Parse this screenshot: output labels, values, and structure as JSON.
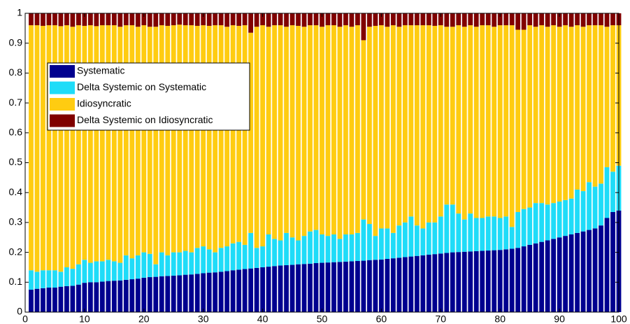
{
  "chart_data": {
    "type": "stacked_bar",
    "x": [
      1,
      2,
      3,
      4,
      5,
      6,
      7,
      8,
      9,
      10,
      11,
      12,
      13,
      14,
      15,
      16,
      17,
      18,
      19,
      20,
      21,
      22,
      23,
      24,
      25,
      26,
      27,
      28,
      29,
      30,
      31,
      32,
      33,
      34,
      35,
      36,
      37,
      38,
      39,
      40,
      41,
      42,
      43,
      44,
      45,
      46,
      47,
      48,
      49,
      50,
      51,
      52,
      53,
      54,
      55,
      56,
      57,
      58,
      59,
      60,
      61,
      62,
      63,
      64,
      65,
      66,
      67,
      68,
      69,
      70,
      71,
      72,
      73,
      74,
      75,
      76,
      77,
      78,
      79,
      80,
      81,
      82,
      83,
      84,
      85,
      86,
      87,
      88,
      89,
      90,
      91,
      92,
      93,
      94,
      95,
      96,
      97,
      98,
      99,
      100
    ],
    "series": [
      {
        "name": "Systematic",
        "color": "#00008f",
        "values": [
          0.075,
          0.078,
          0.08,
          0.082,
          0.082,
          0.085,
          0.087,
          0.088,
          0.092,
          0.098,
          0.1,
          0.1,
          0.102,
          0.104,
          0.105,
          0.106,
          0.108,
          0.11,
          0.112,
          0.115,
          0.117,
          0.118,
          0.12,
          0.121,
          0.122,
          0.123,
          0.125,
          0.126,
          0.128,
          0.13,
          0.132,
          0.133,
          0.135,
          0.137,
          0.14,
          0.142,
          0.144,
          0.146,
          0.148,
          0.15,
          0.152,
          0.154,
          0.156,
          0.157,
          0.158,
          0.16,
          0.161,
          0.162,
          0.164,
          0.165,
          0.166,
          0.167,
          0.168,
          0.169,
          0.17,
          0.171,
          0.172,
          0.174,
          0.175,
          0.176,
          0.178,
          0.18,
          0.182,
          0.184,
          0.186,
          0.188,
          0.19,
          0.192,
          0.194,
          0.196,
          0.198,
          0.2,
          0.201,
          0.202,
          0.203,
          0.204,
          0.205,
          0.206,
          0.207,
          0.208,
          0.21,
          0.212,
          0.215,
          0.22,
          0.225,
          0.23,
          0.235,
          0.24,
          0.245,
          0.25,
          0.255,
          0.26,
          0.265,
          0.27,
          0.275,
          0.28,
          0.29,
          0.315,
          0.335,
          0.34
        ]
      },
      {
        "name": "Delta Systemic on Systematic",
        "color": "#1fdcf8",
        "values": [
          0.065,
          0.057,
          0.06,
          0.058,
          0.058,
          0.05,
          0.063,
          0.057,
          0.068,
          0.077,
          0.065,
          0.07,
          0.068,
          0.071,
          0.065,
          0.059,
          0.082,
          0.07,
          0.078,
          0.085,
          0.078,
          0.042,
          0.08,
          0.069,
          0.078,
          0.077,
          0.08,
          0.074,
          0.087,
          0.09,
          0.078,
          0.067,
          0.08,
          0.083,
          0.09,
          0.093,
          0.081,
          0.119,
          0.067,
          0.07,
          0.108,
          0.091,
          0.084,
          0.108,
          0.092,
          0.08,
          0.094,
          0.108,
          0.111,
          0.095,
          0.089,
          0.093,
          0.077,
          0.091,
          0.09,
          0.094,
          0.138,
          0.121,
          0.08,
          0.104,
          0.102,
          0.085,
          0.108,
          0.116,
          0.134,
          0.102,
          0.09,
          0.108,
          0.106,
          0.124,
          0.162,
          0.16,
          0.129,
          0.108,
          0.127,
          0.111,
          0.11,
          0.114,
          0.113,
          0.107,
          0.11,
          0.073,
          0.12,
          0.125,
          0.125,
          0.135,
          0.13,
          0.12,
          0.12,
          0.12,
          0.12,
          0.12,
          0.145,
          0.135,
          0.16,
          0.14,
          0.14,
          0.17,
          0.135,
          0.15
        ]
      },
      {
        "name": "Idiosyncratic",
        "color": "#ffcc11",
        "values": [
          0.82,
          0.825,
          0.818,
          0.82,
          0.82,
          0.822,
          0.81,
          0.81,
          0.8,
          0.783,
          0.795,
          0.787,
          0.79,
          0.785,
          0.79,
          0.79,
          0.77,
          0.78,
          0.765,
          0.76,
          0.76,
          0.795,
          0.76,
          0.768,
          0.76,
          0.762,
          0.755,
          0.76,
          0.743,
          0.74,
          0.748,
          0.76,
          0.745,
          0.735,
          0.73,
          0.723,
          0.735,
          0.67,
          0.74,
          0.74,
          0.695,
          0.715,
          0.72,
          0.69,
          0.71,
          0.718,
          0.7,
          0.69,
          0.685,
          0.695,
          0.705,
          0.7,
          0.71,
          0.7,
          0.695,
          0.695,
          0.6,
          0.66,
          0.703,
          0.68,
          0.675,
          0.695,
          0.665,
          0.66,
          0.64,
          0.67,
          0.68,
          0.66,
          0.658,
          0.64,
          0.595,
          0.595,
          0.63,
          0.645,
          0.63,
          0.64,
          0.645,
          0.64,
          0.635,
          0.645,
          0.64,
          0.675,
          0.61,
          0.6,
          0.61,
          0.59,
          0.595,
          0.595,
          0.595,
          0.585,
          0.585,
          0.575,
          0.55,
          0.55,
          0.525,
          0.54,
          0.53,
          0.47,
          0.49,
          0.47
        ]
      },
      {
        "name": "Delta Systemic on Idiosyncratic",
        "color": "#800000",
        "values": [
          0.04,
          0.04,
          0.042,
          0.04,
          0.04,
          0.043,
          0.04,
          0.045,
          0.04,
          0.042,
          0.04,
          0.043,
          0.04,
          0.04,
          0.04,
          0.045,
          0.04,
          0.04,
          0.045,
          0.04,
          0.045,
          0.045,
          0.04,
          0.042,
          0.04,
          0.038,
          0.04,
          0.04,
          0.042,
          0.04,
          0.042,
          0.04,
          0.04,
          0.045,
          0.04,
          0.042,
          0.04,
          0.065,
          0.045,
          0.04,
          0.045,
          0.04,
          0.04,
          0.045,
          0.04,
          0.042,
          0.045,
          0.04,
          0.04,
          0.045,
          0.04,
          0.04,
          0.045,
          0.04,
          0.045,
          0.04,
          0.09,
          0.045,
          0.042,
          0.04,
          0.045,
          0.04,
          0.045,
          0.04,
          0.04,
          0.04,
          0.04,
          0.04,
          0.042,
          0.04,
          0.045,
          0.045,
          0.04,
          0.045,
          0.04,
          0.045,
          0.04,
          0.04,
          0.045,
          0.04,
          0.04,
          0.04,
          0.055,
          0.055,
          0.04,
          0.045,
          0.04,
          0.045,
          0.04,
          0.045,
          0.04,
          0.045,
          0.04,
          0.045,
          0.04,
          0.04,
          0.04,
          0.045,
          0.04,
          0.04
        ]
      }
    ],
    "xlim": [
      0,
      100
    ],
    "xticks": [
      0,
      10,
      20,
      30,
      40,
      50,
      60,
      70,
      80,
      90,
      100
    ],
    "ylim": [
      0,
      1
    ],
    "yticks": [
      0,
      0.1,
      0.2,
      0.3,
      0.4,
      0.5,
      0.6,
      0.7,
      0.8,
      0.9,
      1
    ],
    "legend": "upper left"
  }
}
